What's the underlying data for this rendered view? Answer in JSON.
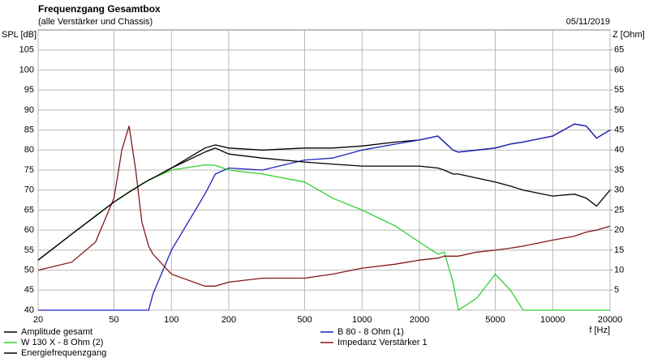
{
  "chart_data": {
    "type": "line",
    "title": "Frequenzgang Gesamtbox",
    "subtitle": "(alle Verstärker und Chassis)",
    "date": "05/11/2019",
    "y_label": "SPL [dB]",
    "y2_label": "Z [Ohm]",
    "x_label": "f [Hz]",
    "log_x": true,
    "grid": true,
    "xlim": [
      20,
      20000
    ],
    "xticks": [
      20,
      50,
      100,
      200,
      500,
      1000,
      2000,
      5000,
      10000,
      20000
    ],
    "ylim": [
      40,
      110
    ],
    "yticks": [
      40,
      45,
      50,
      55,
      60,
      65,
      70,
      75,
      80,
      85,
      90,
      95,
      100,
      105
    ],
    "y2lim": [
      0,
      70
    ],
    "y2ticks": [
      5,
      10,
      15,
      20,
      25,
      30,
      35,
      40,
      45,
      50,
      55,
      60,
      65
    ],
    "x": [
      20,
      30,
      40,
      50,
      55,
      60,
      65,
      70,
      76,
      80,
      100,
      150,
      170,
      200,
      300,
      500,
      700,
      1000,
      1500,
      2000,
      2500,
      2700,
      3000,
      3200,
      4000,
      5000,
      6000,
      7000,
      10000,
      13000,
      15000,
      17000,
      20000
    ],
    "series": [
      {
        "name": "Amplitude gesamt",
        "color": "#000000",
        "values": [
          52.5,
          59,
          63.5,
          67,
          68.3,
          69.5,
          70.5,
          71.5,
          72.5,
          73,
          75.5,
          80.5,
          81.3,
          80.5,
          80,
          80.5,
          80.5,
          81,
          82,
          82.5,
          83.5,
          82,
          80,
          79.5,
          80,
          80.5,
          81.5,
          82,
          83.5,
          86.5,
          86,
          83,
          85
        ]
      },
      {
        "name": "B 80 - 8 Ohm (1)",
        "color": "#2020c0",
        "values": [
          40,
          40,
          40,
          40,
          40,
          40,
          40,
          40,
          40,
          44,
          55,
          69,
          74,
          75.5,
          75,
          77.5,
          78,
          80,
          81.5,
          82.5,
          83.5,
          82,
          80,
          79.5,
          80,
          80.5,
          81.5,
          82,
          83.5,
          86.5,
          86,
          83,
          85
        ]
      },
      {
        "name": "W 130 X - 8 Ohm (2)",
        "color": "#30d030",
        "values": [
          52.5,
          59,
          63.5,
          67,
          68.3,
          69.5,
          70.5,
          71.5,
          72.5,
          73,
          75,
          76.3,
          76.2,
          75,
          74,
          72,
          68,
          65,
          61,
          57,
          54,
          54.5,
          47,
          40,
          43,
          49,
          45,
          40,
          40,
          40,
          40,
          40,
          40
        ]
      },
      {
        "name": "Impedanz Verstärker 1",
        "color": "#801818",
        "axis": "y2",
        "values": [
          10,
          12,
          17,
          28,
          40,
          46,
          35,
          22,
          16,
          14,
          9,
          6,
          6,
          7,
          8,
          8,
          9,
          10.5,
          11.5,
          12.5,
          13,
          13.5,
          13.5,
          13.5,
          14.5,
          15,
          15.5,
          16,
          17.5,
          18.5,
          19.5,
          20,
          21
        ]
      },
      {
        "name": "Energiefrequenzgang",
        "color": "#000000",
        "values": [
          52.5,
          59,
          63.5,
          67,
          68.3,
          69.5,
          70.5,
          71.5,
          72.5,
          73,
          75.5,
          79.5,
          80.5,
          79,
          78,
          77,
          76.5,
          76,
          76,
          76,
          75.5,
          75,
          74,
          74,
          73,
          72,
          71,
          70,
          68.5,
          69,
          68,
          66,
          70
        ]
      }
    ]
  }
}
